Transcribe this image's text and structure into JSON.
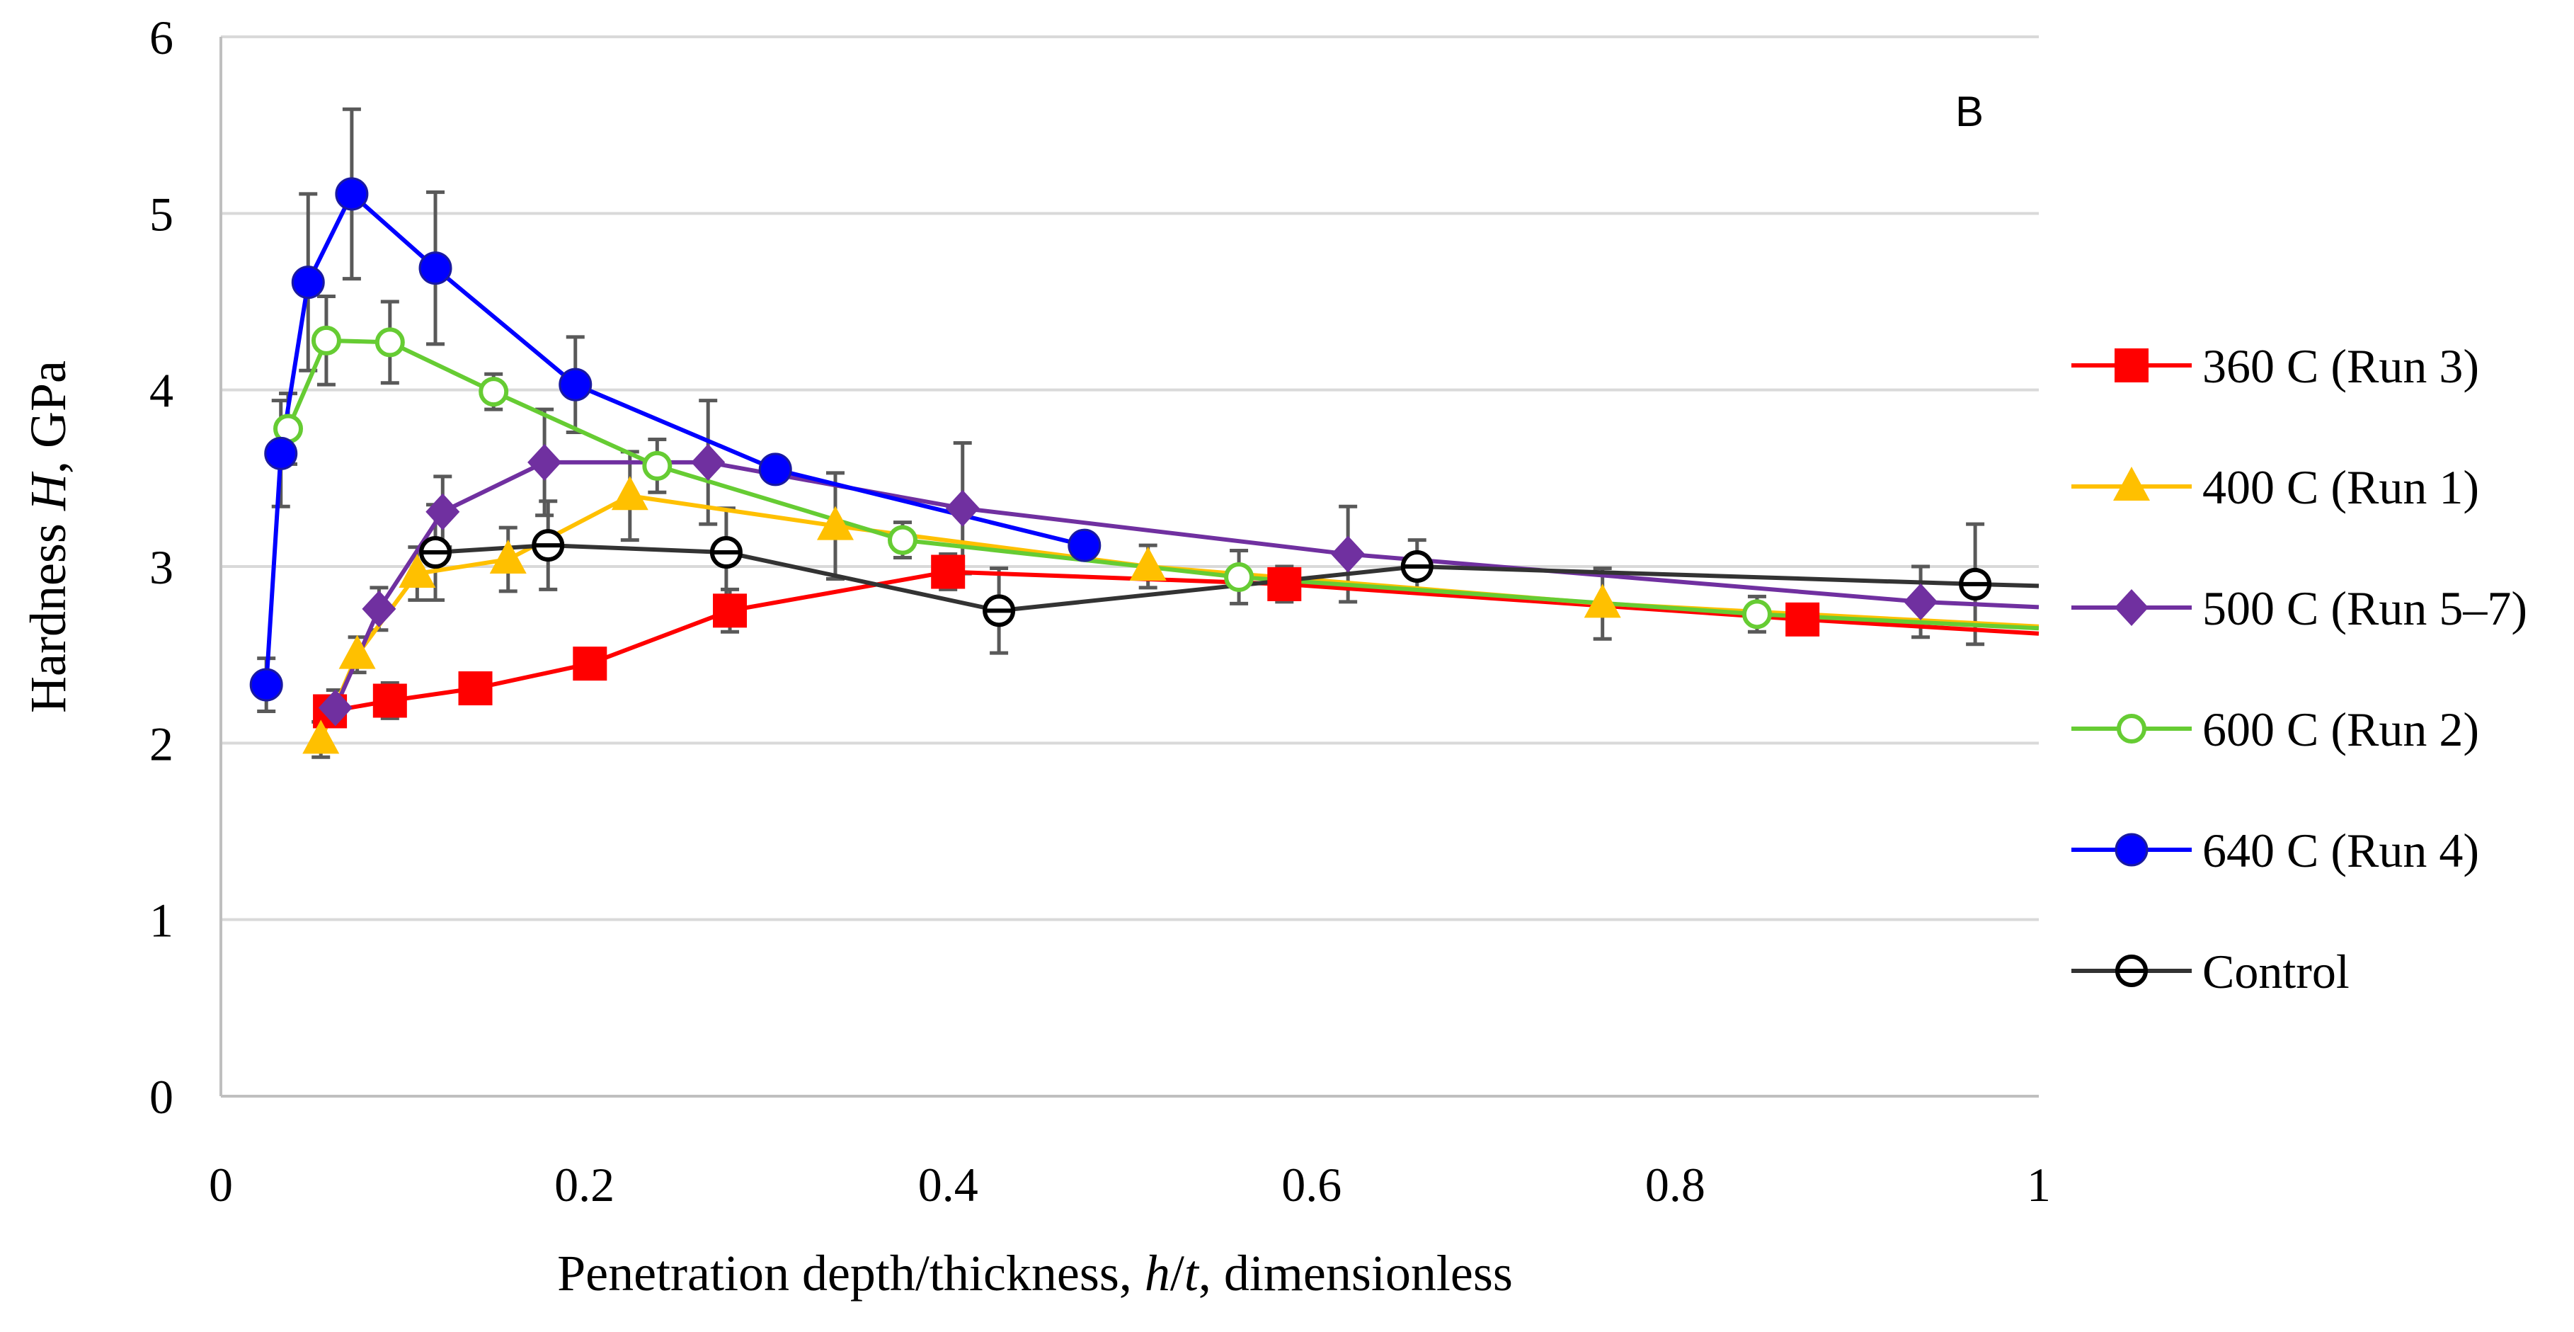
{
  "chart_data": {
    "type": "line",
    "panel_label": "B",
    "xlabel": {
      "prefix": "Penetration depth/thickness, ",
      "italic": "h",
      "slash": "/",
      "italic2": "t",
      "suffix": ", dimensionless"
    },
    "ylabel": {
      "prefix": "Hardness ",
      "italic": "H",
      "suffix": ", GPa"
    },
    "xlim": [
      0,
      1
    ],
    "ylim": [
      0,
      6
    ],
    "x_ticks": [
      0,
      0.2,
      0.4,
      0.6,
      0.8,
      1
    ],
    "x_tick_labels": [
      "0",
      "0.2",
      "0.4",
      "0.6",
      "0.8",
      "1"
    ],
    "y_ticks": [
      0,
      1,
      2,
      3,
      4,
      5,
      6
    ],
    "y_tick_labels": [
      "0",
      "1",
      "2",
      "3",
      "4",
      "5",
      "6"
    ],
    "grid": "horizontal",
    "legend_position": "right",
    "series": [
      {
        "name": "360 C (Run 3)",
        "color": "#ff0000",
        "marker": "square",
        "x": [
          0.06,
          0.093,
          0.14,
          0.203,
          0.28,
          0.4,
          0.585,
          0.87,
          1.0
        ],
        "y": [
          2.18,
          2.24,
          2.31,
          2.45,
          2.75,
          2.97,
          2.9,
          2.7,
          2.62
        ],
        "err": [
          0.08,
          0.1,
          0.06,
          0.06,
          0.12,
          0.1,
          0.1,
          0.05,
          0
        ],
        "marker_visible": [
          true,
          true,
          true,
          true,
          true,
          true,
          true,
          true,
          false
        ]
      },
      {
        "name": "400 C (Run 1)",
        "color": "#ffc000",
        "marker": "triangle",
        "x": [
          0.055,
          0.075,
          0.108,
          0.158,
          0.225,
          0.338,
          0.51,
          0.76,
          1.0
        ],
        "y": [
          2.02,
          2.5,
          2.96,
          3.04,
          3.4,
          3.23,
          3.0,
          2.79,
          2.66
        ],
        "err": [
          0.1,
          0.1,
          0.15,
          0.18,
          0.25,
          0.3,
          0.12,
          0.2,
          0
        ],
        "marker_visible": [
          true,
          true,
          true,
          true,
          true,
          true,
          true,
          true,
          false
        ]
      },
      {
        "name": "500 C (Run 5–7)",
        "color": "#7030a0",
        "marker": "diamond",
        "x": [
          0.063,
          0.087,
          0.122,
          0.178,
          0.268,
          0.408,
          0.62,
          0.935,
          1.0
        ],
        "y": [
          2.2,
          2.76,
          3.31,
          3.59,
          3.59,
          3.33,
          3.07,
          2.8,
          2.77
        ],
        "err": [
          0.1,
          0.12,
          0.2,
          0.3,
          0.35,
          0.37,
          0.27,
          0.2,
          0
        ],
        "marker_visible": [
          true,
          true,
          true,
          true,
          true,
          true,
          true,
          true,
          false
        ]
      },
      {
        "name": "600 C (Run 2)",
        "color": "#66cc33",
        "marker": "open-circle",
        "x": [
          0.037,
          0.058,
          0.093,
          0.15,
          0.24,
          0.375,
          0.56,
          0.845,
          1.0
        ],
        "y": [
          3.78,
          4.28,
          4.27,
          3.99,
          3.57,
          3.15,
          2.94,
          2.73,
          2.65
        ],
        "err": [
          0.2,
          0.25,
          0.23,
          0.1,
          0.15,
          0.1,
          0.15,
          0.1,
          0
        ],
        "marker_visible": [
          true,
          true,
          true,
          true,
          true,
          true,
          true,
          true,
          false
        ]
      },
      {
        "name": "640 C (Run 4)",
        "color": "#0000ff",
        "marker": "filled-circle",
        "x": [
          0.025,
          0.033,
          0.048,
          0.072,
          0.118,
          0.195,
          0.305,
          0.475
        ],
        "y": [
          2.33,
          3.64,
          4.61,
          5.11,
          4.69,
          4.03,
          3.55,
          3.12
        ],
        "err": [
          0.15,
          0.3,
          0.5,
          0.48,
          0.43,
          0.27,
          0.03,
          0.04
        ],
        "marker_visible": [
          true,
          true,
          true,
          true,
          true,
          true,
          true,
          true
        ]
      },
      {
        "name": "Control",
        "color": "#000000",
        "line_color": "#333333",
        "marker": "open-circle-bar",
        "x": [
          0.118,
          0.18,
          0.278,
          0.428,
          0.658,
          0.965,
          1.0
        ],
        "y": [
          3.08,
          3.12,
          3.08,
          2.75,
          3.0,
          2.9,
          2.89
        ],
        "err": [
          0.27,
          0.25,
          0.25,
          0.24,
          0.15,
          0.34,
          0
        ],
        "marker_visible": [
          true,
          true,
          true,
          true,
          true,
          true,
          false
        ]
      }
    ]
  }
}
